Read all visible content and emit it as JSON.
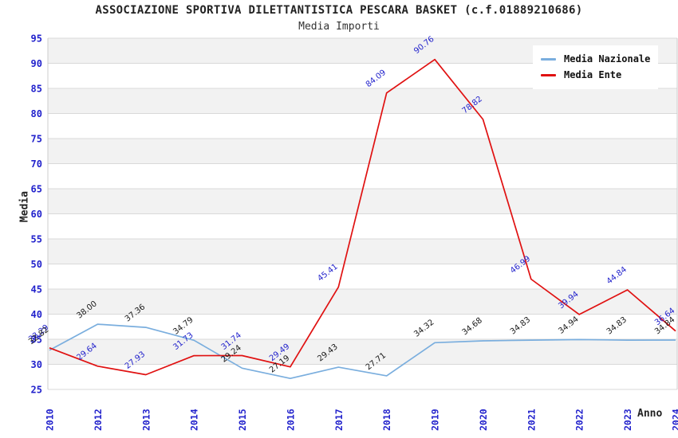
{
  "chart_data": {
    "type": "line",
    "title": "ASSOCIAZIONE SPORTIVA DILETTANTISTICA PESCARA BASKET (c.f.01889210686)",
    "subtitle": "Media Importi",
    "xlabel": "Anno",
    "ylabel": "Media",
    "ylim": [
      25,
      95
    ],
    "ytick_step": 5,
    "grid": true,
    "legend_position": "top-right",
    "band_colors": [
      "#f2f2f2",
      "#ffffff"
    ],
    "gridline_color": "#d9d9d9",
    "axis_tick_color": "#2222cc",
    "categories": [
      "2010",
      "2012",
      "2013",
      "2014",
      "2015",
      "2016",
      "2017",
      "2018",
      "2019",
      "2020",
      "2021",
      "2022",
      "2023",
      "2024"
    ],
    "series": [
      {
        "name": "Media Nazionale",
        "color": "#7aaede",
        "label_color": "#1a1a1a",
        "values": [
          32.82,
          38.0,
          37.36,
          34.79,
          29.24,
          27.19,
          29.43,
          27.71,
          34.32,
          34.68,
          34.83,
          34.94,
          34.83,
          34.84
        ]
      },
      {
        "name": "Media Ente",
        "color": "#e01111",
        "label_color": "#2323cc",
        "values": [
          33.29,
          29.64,
          27.93,
          31.73,
          31.74,
          29.49,
          45.41,
          84.09,
          90.76,
          78.82,
          46.99,
          39.94,
          44.84,
          36.64
        ]
      }
    ]
  }
}
